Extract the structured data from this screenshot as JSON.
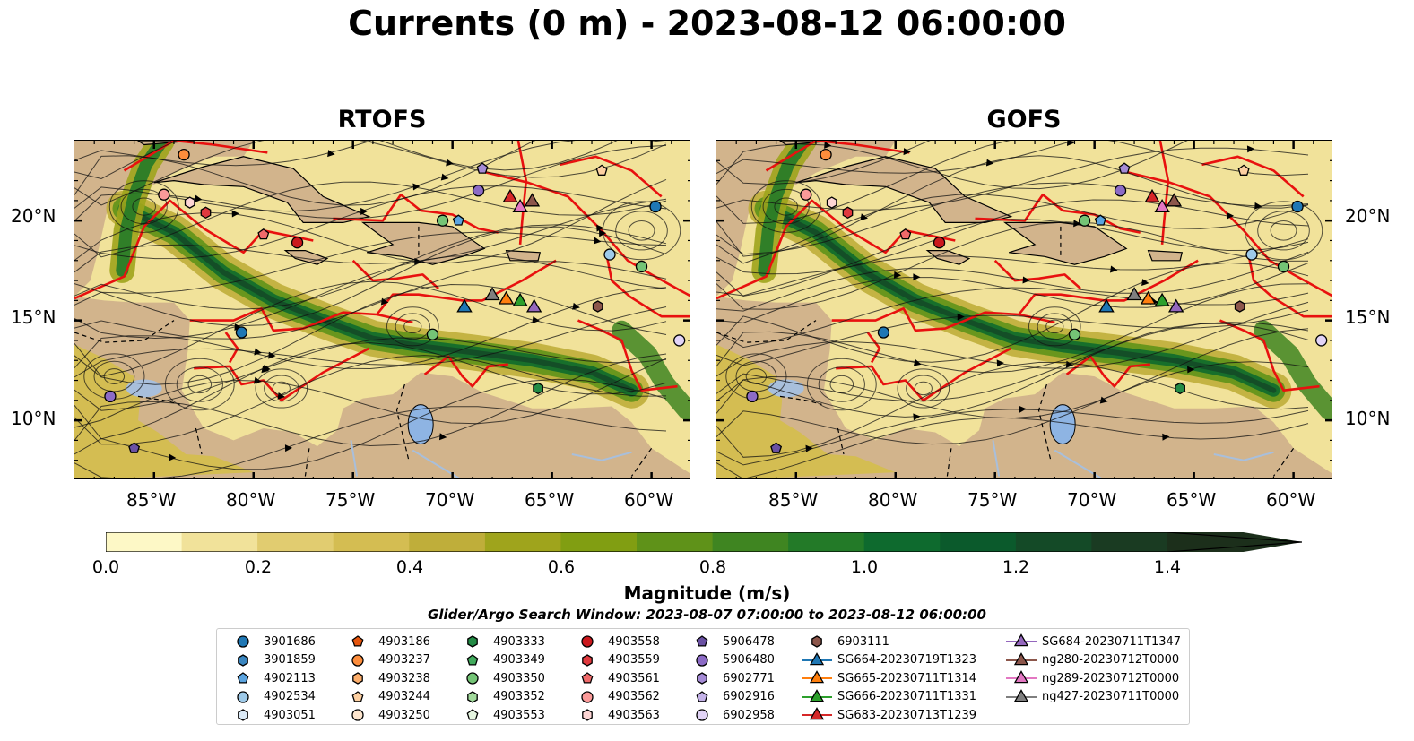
{
  "title": "Currents (0 m) - 2023-08-12 06:00:00",
  "panels": [
    {
      "title": "RTOFS"
    },
    {
      "title": "GOFS"
    }
  ],
  "lon_ticks": [
    "85°W",
    "80°W",
    "75°W",
    "70°W",
    "65°W",
    "60°W"
  ],
  "lat_ticks": [
    "20°N",
    "15°N",
    "10°N"
  ],
  "colorbar": {
    "label": "Magnitude (m/s)",
    "ticks": [
      "0.0",
      "0.2",
      "0.4",
      "0.6",
      "0.8",
      "1.0",
      "1.2",
      "1.4"
    ],
    "min": 0.0,
    "max": 1.5,
    "extend": "max",
    "colors": [
      "#fdf8c6",
      "#f1e29a",
      "#e1cc70",
      "#d4bd52",
      "#bfae3a",
      "#9fa41c",
      "#819e12",
      "#5f9219",
      "#3f8521",
      "#237a28",
      "#0e6a2e",
      "#0b5a2c",
      "#144a27",
      "#1a3b22",
      "#1c2f1b"
    ]
  },
  "search_window": "Glider/Argo Search Window: 2023-08-07 07:00:00 to 2023-08-12 06:00:00",
  "legend": [
    [
      {
        "label": "3901686",
        "marker": "circle",
        "color": "#1f77b4"
      },
      {
        "label": "3901859",
        "marker": "hexagon",
        "color": "#3a86c0"
      },
      {
        "label": "4902113",
        "marker": "pentagon",
        "color": "#5ba4e0"
      },
      {
        "label": "4902534",
        "marker": "circle",
        "color": "#9ecae9"
      },
      {
        "label": "4903051",
        "marker": "hexagon",
        "color": "#dbeaf7"
      }
    ],
    [
      {
        "label": "4903186",
        "marker": "pentagon",
        "color": "#e6550d"
      },
      {
        "label": "4903237",
        "marker": "circle",
        "color": "#fd8d3c"
      },
      {
        "label": "4903238",
        "marker": "hexagon",
        "color": "#fdae6b"
      },
      {
        "label": "4903244",
        "marker": "pentagon",
        "color": "#fdd0a2"
      },
      {
        "label": "4903250",
        "marker": "circle",
        "color": "#fee6ce"
      }
    ],
    [
      {
        "label": "4903333",
        "marker": "hexagon",
        "color": "#238b45"
      },
      {
        "label": "4903349",
        "marker": "pentagon",
        "color": "#41ab5d"
      },
      {
        "label": "4903350",
        "marker": "circle",
        "color": "#74c476"
      },
      {
        "label": "4903352",
        "marker": "hexagon",
        "color": "#a1d99b"
      },
      {
        "label": "4903553",
        "marker": "pentagon",
        "color": "#e5f5e0"
      }
    ],
    [
      {
        "label": "4903558",
        "marker": "circle",
        "color": "#cb181d"
      },
      {
        "label": "4903559",
        "marker": "hexagon",
        "color": "#e0393e"
      },
      {
        "label": "4903561",
        "marker": "pentagon",
        "color": "#ef6a6a"
      },
      {
        "label": "4903562",
        "marker": "circle",
        "color": "#fb9a99"
      },
      {
        "label": "4903563",
        "marker": "hexagon",
        "color": "#fdd5d4"
      }
    ],
    [
      {
        "label": "5906478",
        "marker": "pentagon",
        "color": "#6a51a3"
      },
      {
        "label": "5906480",
        "marker": "circle",
        "color": "#8c6bc6"
      },
      {
        "label": "6902771",
        "marker": "hexagon",
        "color": "#a58bd6"
      },
      {
        "label": "6902916",
        "marker": "pentagon",
        "color": "#c4b2e8"
      },
      {
        "label": "6902958",
        "marker": "circle",
        "color": "#e2d4f7"
      }
    ],
    [
      {
        "label": "6903111",
        "marker": "hexagon",
        "color": "#8c564b"
      },
      {
        "label": "SG664-20230719T1323",
        "marker": "triangle-line",
        "color": "#1f77b4"
      },
      {
        "label": "SG665-20230711T1314",
        "marker": "triangle-line",
        "color": "#ff7f0e"
      },
      {
        "label": "SG666-20230711T1331",
        "marker": "triangle-line",
        "color": "#2ca02c"
      },
      {
        "label": "SG683-20230713T1239",
        "marker": "triangle-line",
        "color": "#d62728"
      }
    ],
    [
      {
        "label": "SG684-20230711T1347",
        "marker": "triangle-line",
        "color": "#9467bd"
      },
      {
        "label": "ng280-20230712T0000",
        "marker": "triangle-line",
        "color": "#8c564b"
      },
      {
        "label": "ng289-20230712T0000",
        "marker": "triangle-line",
        "color": "#e377c2"
      },
      {
        "label": "ng427-20230711T0000",
        "marker": "triangle-line",
        "color": "#7f7f7f"
      }
    ]
  ],
  "map_extent": {
    "lon": [
      -89,
      -58
    ],
    "lat": [
      7,
      24
    ]
  },
  "floats_on_map": [
    {
      "lon": -87.2,
      "lat": 11.2,
      "marker": "circle",
      "color": "#8c6bc6"
    },
    {
      "lon": -86.0,
      "lat": 8.6,
      "marker": "pentagon",
      "color": "#6a51a3"
    },
    {
      "lon": -84.5,
      "lat": 21.3,
      "marker": "circle",
      "color": "#fb9a99"
    },
    {
      "lon": -83.2,
      "lat": 20.9,
      "marker": "hexagon",
      "color": "#fdd5d4"
    },
    {
      "lon": -82.4,
      "lat": 20.4,
      "marker": "hexagon",
      "color": "#e0393e"
    },
    {
      "lon": -83.5,
      "lat": 23.3,
      "marker": "circle",
      "color": "#fd8d3c"
    },
    {
      "lon": -80.6,
      "lat": 14.4,
      "marker": "circle",
      "color": "#1f77b4"
    },
    {
      "lon": -79.5,
      "lat": 19.3,
      "marker": "pentagon",
      "color": "#ef6a6a"
    },
    {
      "lon": -77.8,
      "lat": 18.9,
      "marker": "circle",
      "color": "#cb181d"
    },
    {
      "lon": -70.5,
      "lat": 20.0,
      "marker": "circle",
      "color": "#74c476"
    },
    {
      "lon": -69.7,
      "lat": 20.0,
      "marker": "pentagon",
      "color": "#5ba4e0"
    },
    {
      "lon": -68.7,
      "lat": 21.5,
      "marker": "circle",
      "color": "#8c6bc6"
    },
    {
      "lon": -68.5,
      "lat": 22.6,
      "marker": "pentagon",
      "color": "#a58bd6"
    },
    {
      "lon": -71.0,
      "lat": 14.3,
      "marker": "circle",
      "color": "#74c476"
    },
    {
      "lon": -65.7,
      "lat": 11.6,
      "marker": "hexagon",
      "color": "#238b45"
    },
    {
      "lon": -62.7,
      "lat": 15.7,
      "marker": "hexagon",
      "color": "#8c564b"
    },
    {
      "lon": -62.1,
      "lat": 18.3,
      "marker": "circle",
      "color": "#9ecae9"
    },
    {
      "lon": -60.5,
      "lat": 17.7,
      "marker": "circle",
      "color": "#74c476"
    },
    {
      "lon": -59.8,
      "lat": 20.7,
      "marker": "circle",
      "color": "#1f77b4"
    },
    {
      "lon": -58.6,
      "lat": 14.0,
      "marker": "circle",
      "color": "#e2d4f7"
    },
    {
      "lon": -62.5,
      "lat": 22.5,
      "marker": "pentagon",
      "color": "#fdd0a2"
    }
  ],
  "gliders_on_map": [
    {
      "lon": -69.4,
      "lat": 15.7,
      "color": "#1f77b4"
    },
    {
      "lon": -67.3,
      "lat": 16.1,
      "color": "#ff7f0e"
    },
    {
      "lon": -66.6,
      "lat": 16.0,
      "color": "#2ca02c"
    },
    {
      "lon": -67.1,
      "lat": 21.2,
      "color": "#d62728"
    },
    {
      "lon": -65.9,
      "lat": 15.7,
      "color": "#9467bd"
    },
    {
      "lon": -66.0,
      "lat": 21.0,
      "color": "#8c564b"
    },
    {
      "lon": -66.6,
      "lat": 20.7,
      "color": "#e377c2"
    },
    {
      "lon": -68.0,
      "lat": 16.3,
      "color": "#7f7f7f"
    }
  ]
}
